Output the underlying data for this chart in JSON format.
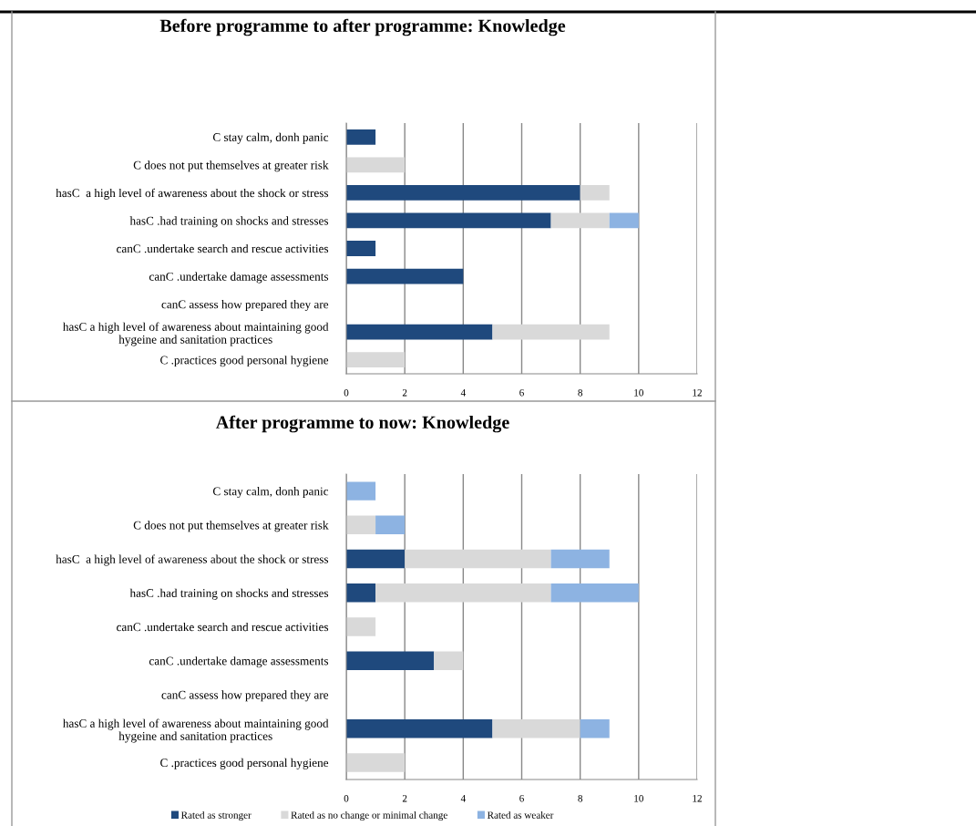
{
  "chart_data": [
    {
      "type": "bar",
      "orientation": "horizontal",
      "stacked": true,
      "title": "Before programme to after programme: Knowledge",
      "categories": [
        "C stay calm, donh panic",
        "C does not put themselves at greater risk",
        "hasC  a high level of awareness about the shock or stress",
        "hasC .had training on shocks and stresses",
        "canC .undertake search and rescue activities",
        "canC .undertake damage assessments",
        "canC assess how prepared they are",
        "hasC a high level of awareness about maintaining good\nhygeine and sanitation practices",
        "C .practices good personal hygiene"
      ],
      "series": [
        {
          "color": "#1f497d",
          "values": [
            1,
            0,
            8,
            7,
            1,
            4,
            0,
            5,
            0
          ]
        },
        {
          "color": "#d9d9d9",
          "values": [
            0,
            2,
            1,
            2,
            0,
            0,
            0,
            4,
            2
          ]
        },
        {
          "color": "#8db3e2",
          "values": [
            0,
            0,
            0,
            1,
            0,
            0,
            0,
            0,
            0
          ]
        }
      ],
      "xlim": [
        0,
        12
      ],
      "xticks": [
        0,
        2,
        4,
        6,
        8,
        10,
        12
      ],
      "grid": "x",
      "legend": false
    },
    {
      "type": "bar",
      "orientation": "horizontal",
      "stacked": true,
      "title": "After programme to now: Knowledge",
      "categories": [
        "C stay calm, donh panic",
        "C does not put themselves at greater risk",
        "hasC  a high level of awareness about the shock or stress",
        "hasC .had training on shocks and stresses",
        "canC .undertake search and rescue activities",
        "canC .undertake damage assessments",
        "canC assess how prepared they are",
        "hasC a high level of awareness about maintaining good\nhygeine and sanitation practices",
        "C .practices good personal hygiene"
      ],
      "series": [
        {
          "name": "Rated as stronger",
          "color": "#1f497d",
          "values": [
            0,
            0,
            2,
            1,
            0,
            3,
            0,
            5,
            0
          ]
        },
        {
          "name": "Rated as no change or minimal change",
          "color": "#d9d9d9",
          "values": [
            0,
            1,
            5,
            6,
            1,
            1,
            0,
            3,
            2
          ]
        },
        {
          "name": "Rated as weaker",
          "color": "#8db3e2",
          "values": [
            1,
            1,
            2,
            3,
            0,
            0,
            0,
            1,
            0
          ]
        }
      ],
      "xlim": [
        0,
        12
      ],
      "xticks": [
        0,
        2,
        4,
        6,
        8,
        10,
        12
      ],
      "grid": "x",
      "legend": "bottom"
    }
  ]
}
